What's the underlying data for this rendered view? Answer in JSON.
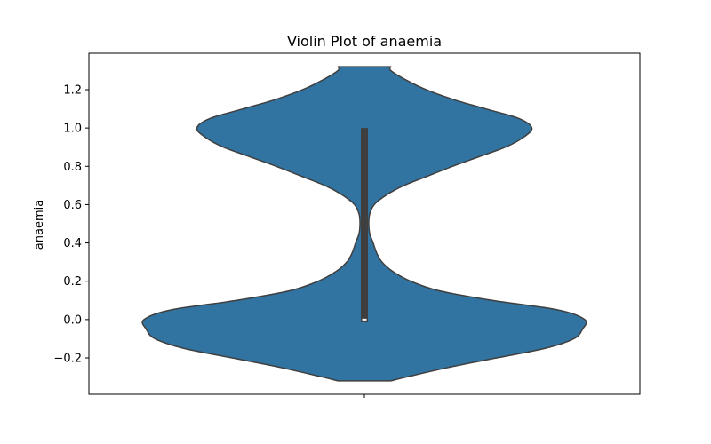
{
  "chart_data": {
    "type": "violin",
    "title": "Violin Plot of anaemia",
    "xlabel": "",
    "ylabel": "anaemia",
    "ylim": [
      -0.39,
      1.39
    ],
    "yticks": [
      -0.2,
      0.0,
      0.2,
      0.4,
      0.6,
      0.8,
      1.0,
      1.2
    ],
    "ytick_labels": [
      "−0.2",
      "0.0",
      "0.2",
      "0.4",
      "0.6",
      "0.8",
      "1.0",
      "1.2"
    ],
    "grid": false,
    "colors": {
      "violin_fill": "#3274a1",
      "outline": "#3f3f3f",
      "box": "#3f3f3f",
      "median": "#ffffff"
    },
    "violin": {
      "support": [
        -0.32,
        1.32
      ],
      "box": {
        "q1": 0.0,
        "median": 0.0,
        "q3": 1.0,
        "whisker_low": 0.0,
        "whisker_high": 1.0
      },
      "density_profile": [
        {
          "y": -0.32,
          "w": 0.12
        },
        {
          "y": -0.3,
          "w": 0.19
        },
        {
          "y": -0.25,
          "w": 0.38
        },
        {
          "y": -0.2,
          "w": 0.6
        },
        {
          "y": -0.15,
          "w": 0.82
        },
        {
          "y": -0.1,
          "w": 0.95
        },
        {
          "y": -0.05,
          "w": 0.99
        },
        {
          "y": 0.0,
          "w": 1.0
        },
        {
          "y": 0.05,
          "w": 0.88
        },
        {
          "y": 0.1,
          "w": 0.58
        },
        {
          "y": 0.15,
          "w": 0.34
        },
        {
          "y": 0.2,
          "w": 0.21
        },
        {
          "y": 0.25,
          "w": 0.13
        },
        {
          "y": 0.3,
          "w": 0.08
        },
        {
          "y": 0.35,
          "w": 0.055
        },
        {
          "y": 0.4,
          "w": 0.04
        },
        {
          "y": 0.45,
          "w": 0.024
        },
        {
          "y": 0.5,
          "w": 0.02
        },
        {
          "y": 0.55,
          "w": 0.024
        },
        {
          "y": 0.6,
          "w": 0.045
        },
        {
          "y": 0.65,
          "w": 0.1
        },
        {
          "y": 0.7,
          "w": 0.18
        },
        {
          "y": 0.75,
          "w": 0.29
        },
        {
          "y": 0.8,
          "w": 0.4
        },
        {
          "y": 0.85,
          "w": 0.52
        },
        {
          "y": 0.9,
          "w": 0.64
        },
        {
          "y": 0.95,
          "w": 0.72
        },
        {
          "y": 1.0,
          "w": 0.76
        },
        {
          "y": 1.05,
          "w": 0.7
        },
        {
          "y": 1.1,
          "w": 0.55
        },
        {
          "y": 1.15,
          "w": 0.4
        },
        {
          "y": 1.2,
          "w": 0.28
        },
        {
          "y": 1.25,
          "w": 0.19
        },
        {
          "y": 1.3,
          "w": 0.12
        },
        {
          "y": 1.32,
          "w": 0.12
        }
      ]
    }
  }
}
